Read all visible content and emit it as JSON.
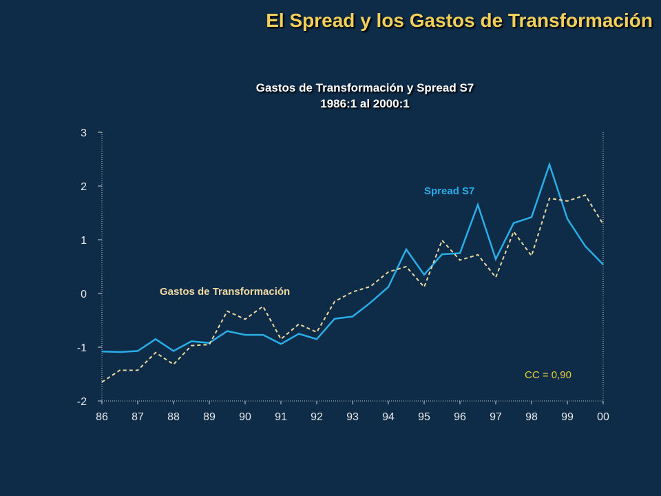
{
  "slide": {
    "title": "El Spread y los Gastos de Transformación"
  },
  "colors": {
    "background": "#0e2c48",
    "title": "#f2cf5a",
    "spread": "#29aee8",
    "gastos": "#f0d9a0",
    "cc_label": "#e8cf3c",
    "axis": "#d0d0d0"
  },
  "chart_data": {
    "type": "line",
    "title": "Gastos de Transformación y Spread S7",
    "subtitle": "1986:1 al 2000:1",
    "xlabel": "",
    "ylabel": "",
    "categories": [
      "86",
      "87",
      "88",
      "89",
      "90",
      "91",
      "92",
      "93",
      "94",
      "95",
      "96",
      "97",
      "98",
      "99",
      "00"
    ],
    "ylim": [
      -2,
      3
    ],
    "yticks": [
      "3",
      "2",
      "1",
      "0",
      "-1",
      "-2"
    ],
    "grid": false,
    "series": [
      {
        "name": "Spread S7",
        "style": "solid",
        "x": [
          86,
          86.5,
          87,
          87.5,
          88,
          88.5,
          89,
          89.5,
          90,
          90.5,
          91,
          91.5,
          92,
          92.5,
          93,
          93.5,
          94,
          94.5,
          95,
          95.5,
          96,
          96.5,
          97,
          97.5,
          98,
          98.5,
          99,
          99.5,
          100
        ],
        "values": [
          -1.08,
          -1.09,
          -1.07,
          -0.85,
          -1.07,
          -0.89,
          -0.92,
          -0.7,
          -0.77,
          -0.77,
          -0.94,
          -0.75,
          -0.85,
          -0.47,
          -0.43,
          -0.17,
          0.12,
          0.82,
          0.35,
          0.73,
          0.75,
          1.65,
          0.64,
          1.31,
          1.42,
          2.4,
          1.39,
          0.88,
          0.54
        ]
      },
      {
        "name": "Gastos de Transformación",
        "style": "dashed",
        "x": [
          86,
          86.5,
          87,
          87.5,
          88,
          88.5,
          89,
          89.5,
          90,
          90.5,
          91,
          91.5,
          92,
          92.5,
          93,
          93.5,
          94,
          94.5,
          95,
          95.5,
          96,
          96.5,
          97,
          97.5,
          98,
          98.5,
          99,
          99.5,
          100
        ],
        "values": [
          -1.65,
          -1.43,
          -1.43,
          -1.1,
          -1.32,
          -0.97,
          -0.95,
          -0.33,
          -0.48,
          -0.24,
          -0.85,
          -0.57,
          -0.72,
          -0.15,
          0.03,
          0.13,
          0.4,
          0.5,
          0.12,
          0.99,
          0.62,
          0.72,
          0.3,
          1.15,
          0.7,
          1.77,
          1.72,
          1.83,
          1.29
        ]
      }
    ],
    "annotations": {
      "spread_label": "Spread S7",
      "gastos_label": "Gastos de Transformación",
      "cc_label": "CC = 0,90"
    }
  }
}
